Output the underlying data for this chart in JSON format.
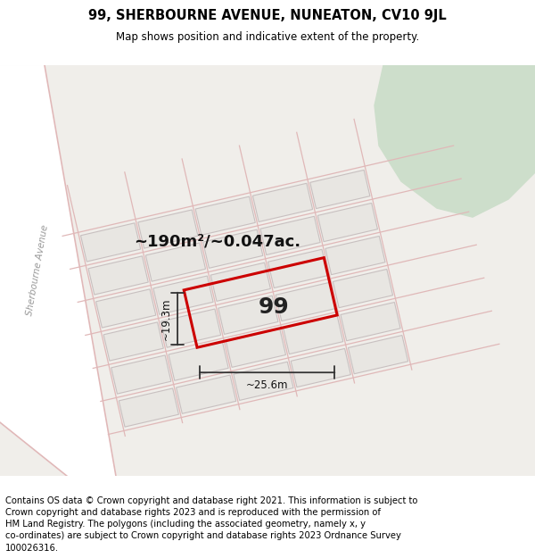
{
  "title": "99, SHERBOURNE AVENUE, NUNEATON, CV10 9JL",
  "subtitle": "Map shows position and indicative extent of the property.",
  "footer": "Contains OS data © Crown copyright and database right 2021. This information is subject to\nCrown copyright and database rights 2023 and is reproduced with the permission of\nHM Land Registry. The polygons (including the associated geometry, namely x, y\nco-ordinates) are subject to Crown copyright and database rights 2023 Ordnance Survey\n100026316.",
  "area_text": "~190m²/~0.047ac.",
  "width_text": "~25.6m",
  "height_text": "~19.3m",
  "property_number": "99",
  "map_bg": "#f0eeea",
  "green_area_color": "#cddecb",
  "building_fill": "#e8e6e2",
  "building_edge": "#c8c0c0",
  "road_fill": "#ffffff",
  "road_line_color": "#e0b8b8",
  "plot_color": "#cc0000",
  "dim_color": "#333333",
  "street_label_color": "#999999",
  "title_fontsize": 10.5,
  "subtitle_fontsize": 8.5,
  "footer_fontsize": 7.2,
  "area_fontsize": 13,
  "number_fontsize": 18,
  "dim_fontsize": 8.5
}
